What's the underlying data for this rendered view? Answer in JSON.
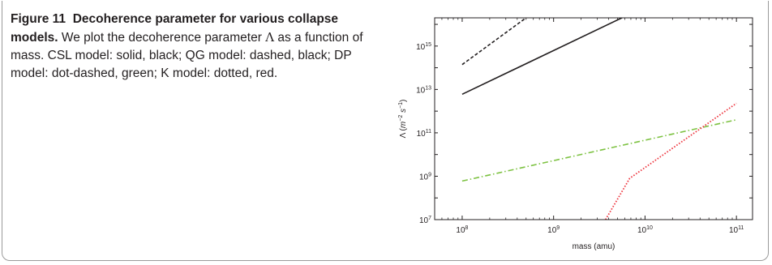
{
  "caption": {
    "label": "Figure 11",
    "title": "Decoherence parameter for various collapse models.",
    "text_before_symbol": "We plot the decoherence parameter",
    "symbol": "Λ",
    "text_after_symbol": "as a function of mass. CSL model: solid, black; QG model: dashed, black; DP model: dot-dashed, green; K model: dotted, red."
  },
  "chart_data": {
    "type": "line",
    "title": "",
    "xlabel": "mass (amu)",
    "ylabel": "Λ (m⁻² s⁻¹)",
    "xscale": "log",
    "yscale": "log",
    "xlim": [
      50000000.0,
      150000000000.0
    ],
    "ylim": [
      10000000.0,
      2e+16
    ],
    "x_ticks": [
      100000000.0,
      1000000000.0,
      10000000000.0,
      100000000000.0
    ],
    "x_tick_labels": [
      "10^8",
      "10^9",
      "10^10",
      "10^11"
    ],
    "y_ticks": [
      10000000.0,
      1000000000.0,
      100000000000.0,
      10000000000000.0,
      1000000000000000.0
    ],
    "y_tick_labels": [
      "10^7",
      "10^9",
      "10^11",
      "10^13",
      "10^15"
    ],
    "grid": false,
    "legend": "none",
    "series": [
      {
        "model": "CSL",
        "style": "solid",
        "color": "#231f20",
        "x": [
          100000000.0,
          5600000000.0
        ],
        "y": [
          6000000000000.0,
          2e+16
        ]
      },
      {
        "model": "QG",
        "style": "dashed",
        "color": "#231f20",
        "x": [
          100000000.0,
          500000000.0
        ],
        "y": [
          140000000000000.0,
          2e+16
        ]
      },
      {
        "model": "DP",
        "style": "dot-dashed",
        "color": "#7dc242",
        "x": [
          100000000.0,
          100000000000.0
        ],
        "y": [
          600000000.0,
          400000000000.0
        ]
      },
      {
        "model": "K",
        "style": "dotted",
        "color": "#ee3a43",
        "x": [
          3700000000.0,
          6800000000.0,
          100000000000.0
        ],
        "y": [
          10000000.0,
          800000000.0,
          2300000000000.0
        ]
      }
    ]
  }
}
